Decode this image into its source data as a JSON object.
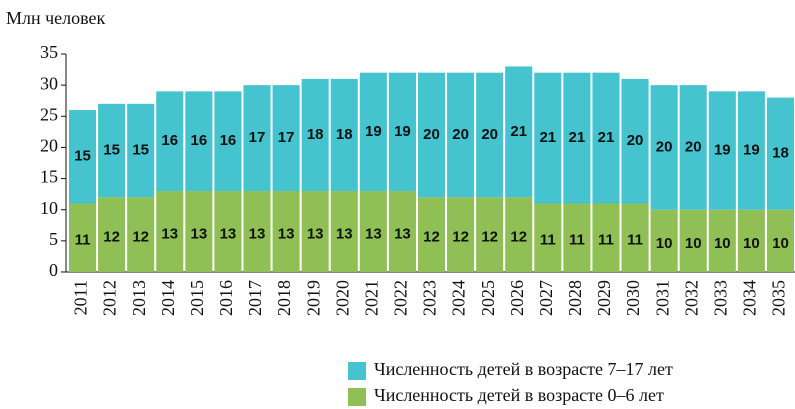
{
  "chart_data": {
    "type": "stacked_bar",
    "y_label": "Млн человек",
    "categories": [
      "2011",
      "2012",
      "2013",
      "2014",
      "2015",
      "2016",
      "2017",
      "2018",
      "2019",
      "2020",
      "2021",
      "2022",
      "2023",
      "2024",
      "2025",
      "2026",
      "2027",
      "2028",
      "2029",
      "2030",
      "2031",
      "2032",
      "2033",
      "2034",
      "2035"
    ],
    "series": [
      {
        "name": "Численность детей в возрасте 0–6 лет",
        "color": "#8fbf55",
        "values": [
          11,
          12,
          12,
          13,
          13,
          13,
          13,
          13,
          13,
          13,
          13,
          13,
          12,
          12,
          12,
          12,
          11,
          11,
          11,
          11,
          10,
          10,
          10,
          10,
          10
        ]
      },
      {
        "name": "Численность детей в возрасте 7–17 лет",
        "color": "#45c3cf",
        "values": [
          15,
          15,
          15,
          16,
          16,
          16,
          17,
          17,
          18,
          18,
          19,
          19,
          20,
          20,
          20,
          21,
          21,
          21,
          21,
          20,
          20,
          20,
          19,
          19,
          18
        ]
      }
    ],
    "ylim": [
      0,
      35
    ],
    "yticks": [
      0,
      5,
      10,
      15,
      20,
      25,
      30,
      35
    ]
  }
}
